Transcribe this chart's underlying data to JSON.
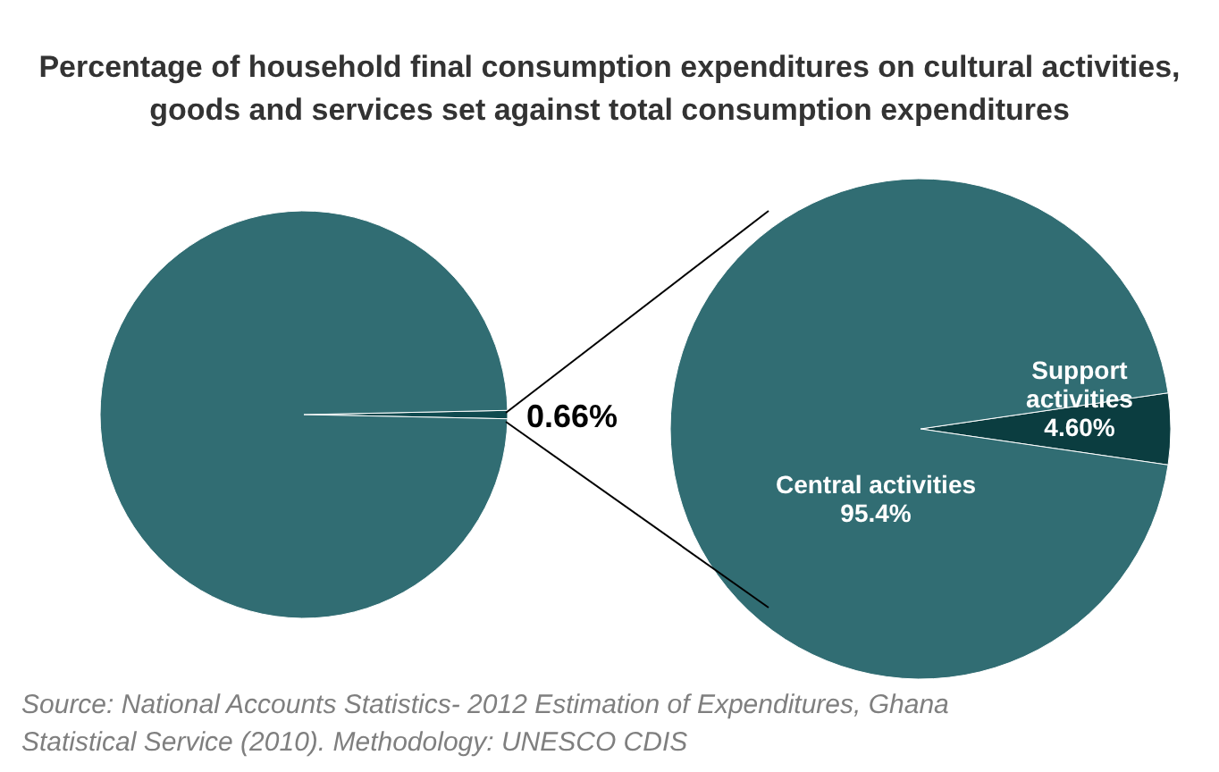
{
  "chart_data": [
    {
      "type": "pie",
      "title": "Percentage of household final consumption expenditures on cultural activities, goods and services set against total consumption expenditures",
      "categories": [
        null,
        null
      ],
      "values": [
        0.66,
        99.34
      ],
      "colors": [
        "#0f4a4f",
        "#316d73"
      ],
      "value_labels": [
        "0.66%",
        null
      ]
    },
    {
      "type": "pie",
      "categories": [
        "Support activities",
        "Central activities"
      ],
      "values": [
        4.6,
        95.4
      ],
      "colors": [
        "#0b3d40",
        "#316d73"
      ],
      "value_labels": [
        "4.60%",
        "95.4%"
      ],
      "annotations": [
        "Source: National Accounts Statistics- 2012 Estimation of Expenditures, Ghana Statistical Service (2010). Methodology: UNESCO CDIS"
      ]
    }
  ]
}
